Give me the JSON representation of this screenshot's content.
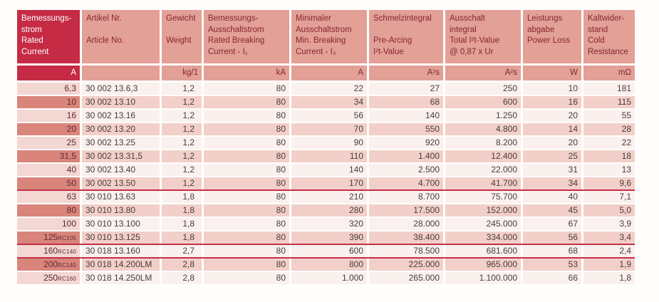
{
  "page": {
    "background": "#fffefd"
  },
  "colors": {
    "crimson": "#c52b45",
    "salmon": "#e2a096",
    "header_text": "#872532",
    "row_light_first": "#f3d7d2",
    "row_light": "#faf1ee",
    "row_dark_first": "#d9857b",
    "row_dark": "#f2cfc8",
    "data_text": "#473c3c",
    "first_col_text": "#5d2931",
    "separator": "#c22f48"
  },
  "table": {
    "columns": [
      {
        "de": [
          "Bemessungs-",
          "strom"
        ],
        "en": [
          "Rated",
          "Current"
        ],
        "unit": "A"
      },
      {
        "de": [
          "Artikel Nr."
        ],
        "en": [
          "Article No."
        ],
        "unit": ""
      },
      {
        "de": [
          "Gewicht"
        ],
        "en": [
          "Weight"
        ],
        "unit": "kg/1"
      },
      {
        "de": [
          "Bemessungs-",
          "Ausschaltstrom"
        ],
        "en": [
          "Rated Breaking",
          "Current - I₁"
        ],
        "unit": "kA"
      },
      {
        "de": [
          "Minimaler",
          "Ausschaltstrom"
        ],
        "en": [
          "Min. Breaking",
          "Current - I₃"
        ],
        "unit": "A"
      },
      {
        "de": [
          "Schmelzintegral"
        ],
        "en": [
          "Pre-Arcing",
          "I²t-Value"
        ],
        "unit": "A²s"
      },
      {
        "de": [
          "Ausschalt",
          "integral"
        ],
        "en": [
          "Total I²t-Value",
          "@ 0,87 x Ur"
        ],
        "unit": "A²s"
      },
      {
        "de": [
          "Leistungs",
          "abgabe"
        ],
        "en": [
          "Power Loss"
        ],
        "unit": "W"
      },
      {
        "de": [
          "Kaltwider-",
          "stand"
        ],
        "en": [
          "Cold",
          "Resistance"
        ],
        "unit": "mΩ"
      }
    ],
    "rows": [
      {
        "rated": "6,3",
        "suffix": "",
        "cells": [
          "30 002 13.6,3",
          "1,2",
          "80",
          "22",
          "27",
          "250",
          "10",
          "181"
        ],
        "sep_after": false
      },
      {
        "rated": "10",
        "suffix": "",
        "cells": [
          "30 002 13.10",
          "1,2",
          "80",
          "34",
          "68",
          "600",
          "16",
          "115"
        ],
        "sep_after": false
      },
      {
        "rated": "16",
        "suffix": "",
        "cells": [
          "30 002 13.16",
          "1,2",
          "80",
          "56",
          "140",
          "1.250",
          "20",
          "55"
        ],
        "sep_after": false
      },
      {
        "rated": "20",
        "suffix": "",
        "cells": [
          "30 002 13.20",
          "1,2",
          "80",
          "70",
          "550",
          "4.800",
          "14",
          "28"
        ],
        "sep_after": false
      },
      {
        "rated": "25",
        "suffix": "",
        "cells": [
          "30 002 13.25",
          "1,2",
          "80",
          "90",
          "920",
          "8.200",
          "20",
          "22"
        ],
        "sep_after": false
      },
      {
        "rated": "31,5",
        "suffix": "",
        "cells": [
          "30 002 13.31,5",
          "1,2",
          "80",
          "110",
          "1.400",
          "12.400",
          "25",
          "18"
        ],
        "sep_after": false
      },
      {
        "rated": "40",
        "suffix": "",
        "cells": [
          "30 002 13.40",
          "1,2",
          "80",
          "140",
          "2.500",
          "22.000",
          "31",
          "13"
        ],
        "sep_after": false
      },
      {
        "rated": "50",
        "suffix": "",
        "cells": [
          "30 002 13.50",
          "1,2",
          "80",
          "170",
          "4.700",
          "41.700",
          "34",
          "9,6"
        ],
        "sep_after": true
      },
      {
        "rated": "63",
        "suffix": "",
        "cells": [
          "30 010 13.63",
          "1,8",
          "80",
          "210",
          "8.700",
          "75.700",
          "40",
          "7,1"
        ],
        "sep_after": false
      },
      {
        "rated": "80",
        "suffix": "",
        "cells": [
          "30 010 13.80",
          "1,8",
          "80",
          "280",
          "17.500",
          "152.000",
          "45",
          "5,0"
        ],
        "sep_after": false
      },
      {
        "rated": "100",
        "suffix": "",
        "cells": [
          "30 010 13.100",
          "1,8",
          "80",
          "320",
          "28.000",
          "245.000",
          "67",
          "3,9"
        ],
        "sep_after": false
      },
      {
        "rated": "125",
        "suffix": "RC105",
        "cells": [
          "30 010 13.125",
          "1,8",
          "80",
          "390",
          "38.400",
          "334.000",
          "56",
          "3,4"
        ],
        "sep_after": true
      },
      {
        "rated": "160",
        "suffix": "RC140",
        "cells": [
          "30 018 13.160",
          "2,7",
          "80",
          "600",
          "78.500",
          "681.600",
          "68",
          "2,4"
        ],
        "sep_after": true
      },
      {
        "rated": "200",
        "suffix": "RC140",
        "cells": [
          "30 018 14.200LM",
          "2,8",
          "80",
          "800",
          "225.000",
          "965.000",
          "53",
          "1,9"
        ],
        "sep_after": false
      },
      {
        "rated": "250",
        "suffix": "RC160",
        "cells": [
          "30 018 14.250LM",
          "2,8",
          "80",
          "1.000",
          "265.000",
          "1.100.000",
          "66",
          "1,8"
        ],
        "sep_after": false
      }
    ]
  }
}
